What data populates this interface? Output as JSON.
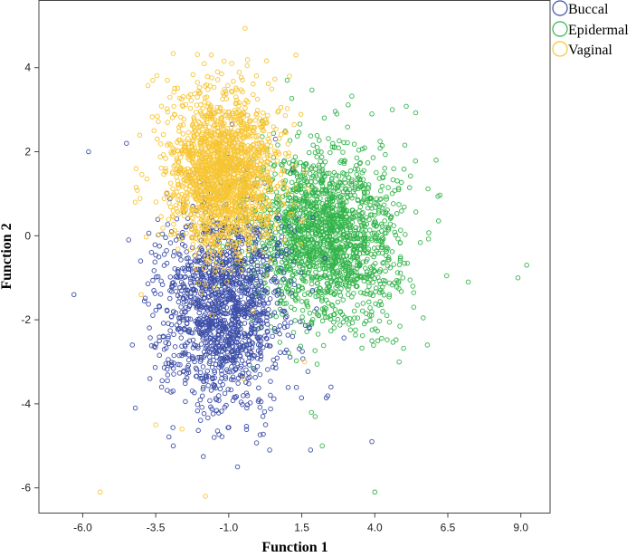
{
  "chart_data": {
    "type": "scatter",
    "title": "",
    "xlabel": "Function 1",
    "ylabel": "Function 2",
    "xlim": [
      -7.5,
      10.0
    ],
    "ylim": [
      -6.6,
      5.6
    ],
    "xticks": [
      -6.0,
      -3.5,
      -1.0,
      1.5,
      4.0,
      6.5,
      9.0
    ],
    "xtick_labels": [
      "-6.0",
      "-3.5",
      "-1.0",
      "1.5",
      "4.0",
      "6.5",
      "9.0"
    ],
    "yticks": [
      -6,
      -4,
      -2,
      0,
      2,
      4
    ],
    "ytick_labels": [
      "-6",
      "-4",
      "-2",
      "0",
      "2",
      "4"
    ],
    "grid": false,
    "legend_position": "top-right outside",
    "marker": "hollow-circle",
    "series": [
      {
        "name": "Buccal",
        "color": "#3d4fa8",
        "cluster": {
          "center": [
            -1.2,
            -1.7
          ],
          "spread": [
            1.05,
            1.15
          ],
          "count": 1500
        },
        "outliers": [
          [
            -5.8,
            2.0
          ],
          [
            -4.5,
            2.2
          ],
          [
            -6.3,
            -1.4
          ],
          [
            -4.3,
            -2.6
          ],
          [
            -4.2,
            -4.1
          ],
          [
            -3.7,
            -3.4
          ],
          [
            -2.9,
            -5.0
          ],
          [
            -1.5,
            -4.8
          ],
          [
            -0.7,
            -5.5
          ],
          [
            0.4,
            -5.1
          ],
          [
            1.8,
            -5.1
          ],
          [
            3.9,
            -4.9
          ],
          [
            2.5,
            -3.6
          ],
          [
            -3.3,
            -3.6
          ],
          [
            0.6,
            2.3
          ]
        ]
      },
      {
        "name": "Epidermal",
        "color": "#33b44a",
        "cluster": {
          "center": [
            2.3,
            0.0
          ],
          "spread": [
            1.25,
            1.05
          ],
          "count": 1800
        },
        "outliers": [
          [
            9.2,
            -0.7
          ],
          [
            8.9,
            -1.0
          ],
          [
            4.6,
            3.0
          ],
          [
            1.0,
            3.7
          ],
          [
            2.7,
            2.9
          ],
          [
            3.9,
            2.9
          ],
          [
            6.1,
            1.8
          ],
          [
            2.2,
            -5.0
          ],
          [
            4.0,
            -6.1
          ],
          [
            7.2,
            -1.1
          ],
          [
            5.8,
            -2.6
          ],
          [
            3.9,
            -2.5
          ],
          [
            4.1,
            -2.5
          ]
        ]
      },
      {
        "name": "Vaginal",
        "color": "#f7c533",
        "cluster": {
          "center": [
            -1.2,
            1.5
          ],
          "spread": [
            0.95,
            0.95
          ],
          "count": 1800
        },
        "outliers": [
          [
            -5.4,
            -6.1
          ],
          [
            -1.8,
            -6.2
          ],
          [
            -3.5,
            -4.5
          ],
          [
            -1.6,
            4.3
          ],
          [
            -0.9,
            4.1
          ],
          [
            1.3,
            4.3
          ],
          [
            -3.6,
            3.7
          ],
          [
            -3.1,
            3.7
          ],
          [
            -4.2,
            0.8
          ],
          [
            -4.0,
            -1.4
          ],
          [
            -2.6,
            -4.6
          ],
          [
            -0.5,
            -3.4
          ],
          [
            1.6,
            -3.0
          ]
        ]
      }
    ]
  }
}
